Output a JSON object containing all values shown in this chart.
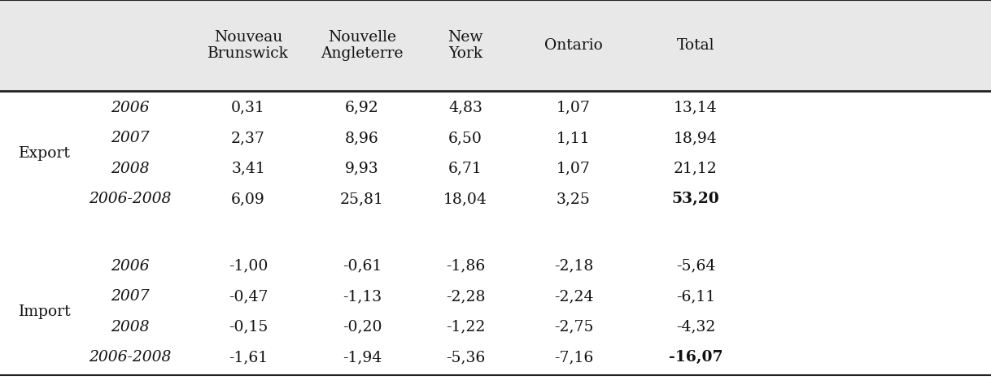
{
  "header_bg": "#e8e8e8",
  "body_bg": "#ffffff",
  "line_color": "#222222",
  "export_label": "Export",
  "import_label": "Import",
  "header_labels": [
    "Nouveau\nBrunswick",
    "Nouvelle\nAngleterre",
    "New\nYork",
    "Ontario",
    "Total"
  ],
  "export_rows": [
    [
      "2006",
      "0,31",
      "6,92",
      "4,83",
      "1,07",
      "13,14"
    ],
    [
      "2007",
      "2,37",
      "8,96",
      "6,50",
      "1,11",
      "18,94"
    ],
    [
      "2008",
      "3,41",
      "9,93",
      "6,71",
      "1,07",
      "21,12"
    ],
    [
      "2006-2008",
      "6,09",
      "25,81",
      "18,04",
      "3,25",
      "53,20"
    ]
  ],
  "import_rows": [
    [
      "2006",
      "-1,00",
      "-0,61",
      "-1,86",
      "-2,18",
      "-5,64"
    ],
    [
      "2007",
      "-0,47",
      "-1,13",
      "-2,28",
      "-2,24",
      "-6,11"
    ],
    [
      "2008",
      "-0,15",
      "-0,20",
      "-1,22",
      "-2,75",
      "-4,32"
    ],
    [
      "2006-2008",
      "-1,61",
      "-1,94",
      "-5,36",
      "-7,16",
      "-16,07"
    ]
  ],
  "figsize": [
    12.18,
    4.68
  ],
  "dpi": 100,
  "font_size": 13.5,
  "font_family": "DejaVu Serif"
}
